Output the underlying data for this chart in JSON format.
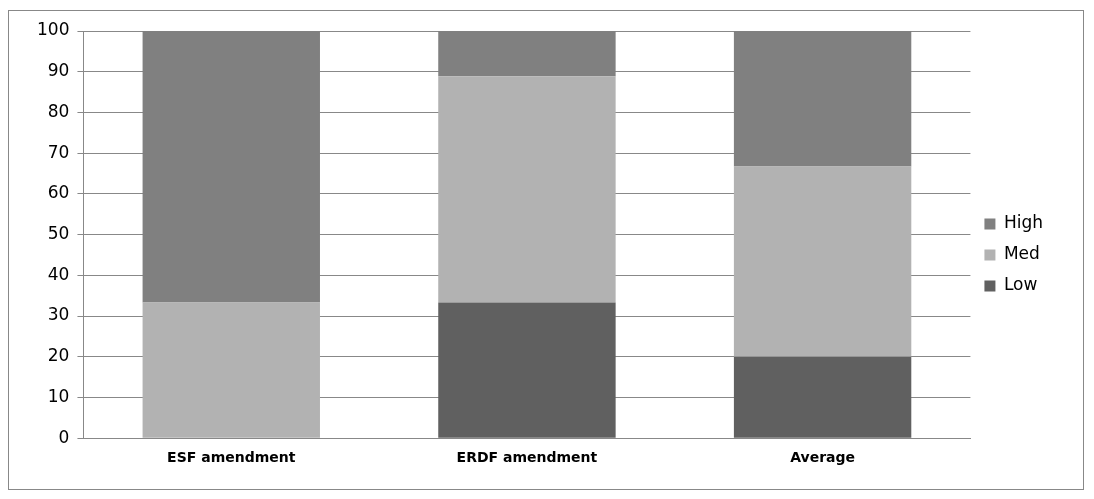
{
  "chart_data": {
    "type": "bar",
    "stacked": true,
    "categories": [
      "ESF amendment",
      "ERDF amendment",
      "Average"
    ],
    "series": [
      {
        "name": "Low",
        "color": "#606060",
        "values": [
          0,
          33.3,
          20
        ]
      },
      {
        "name": "Med",
        "color": "#b2b2b2",
        "values": [
          33.3,
          55.6,
          46.7
        ]
      },
      {
        "name": "High",
        "color": "#808080",
        "values": [
          66.7,
          11.1,
          33.3
        ]
      }
    ],
    "ylim": [
      0,
      100
    ],
    "yticks": [
      0,
      10,
      20,
      30,
      40,
      50,
      60,
      70,
      80,
      90,
      100
    ],
    "grid": "y",
    "legend": "right"
  }
}
